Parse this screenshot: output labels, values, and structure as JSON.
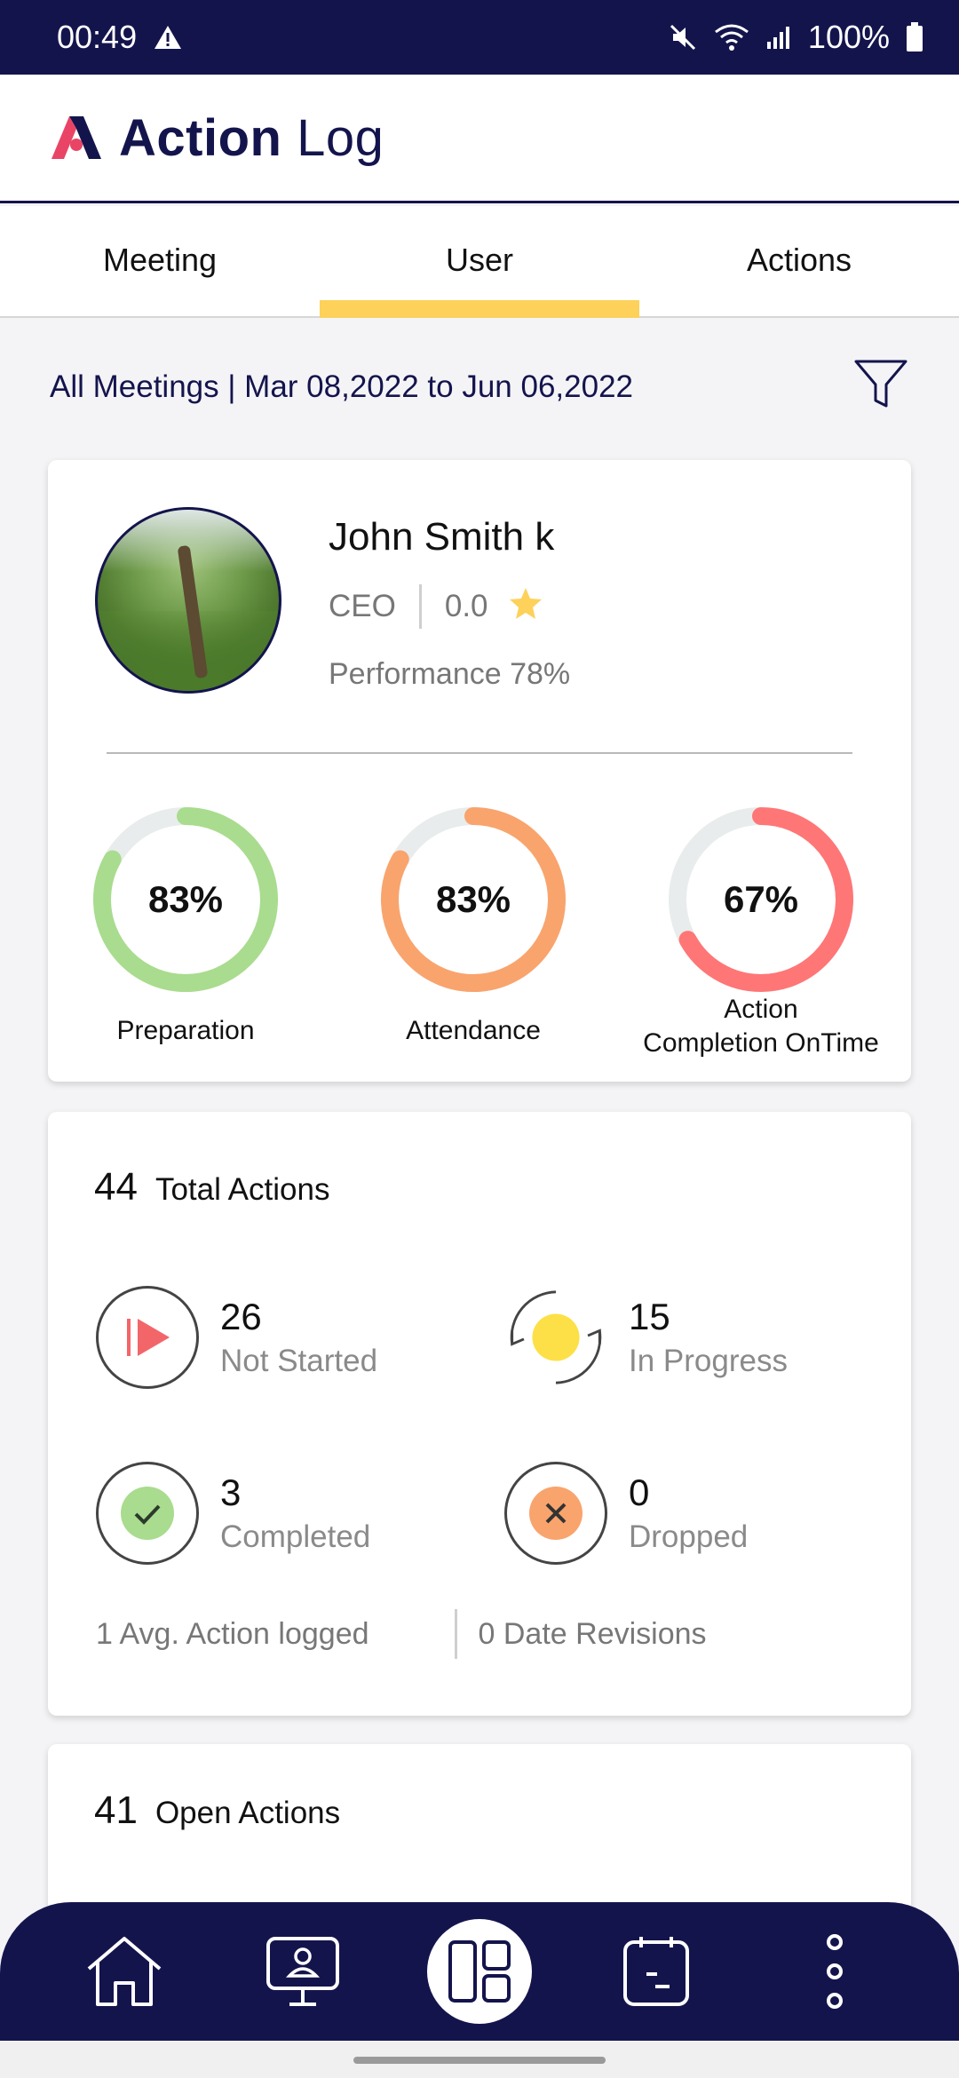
{
  "status": {
    "time": "00:49",
    "battery": "100%"
  },
  "app": {
    "title_bold": "Action",
    "title_light": "Log"
  },
  "tabs": [
    {
      "label": "Meeting",
      "active": false
    },
    {
      "label": "User",
      "active": true
    },
    {
      "label": "Actions",
      "active": false
    }
  ],
  "filter": {
    "range": "All Meetings | Mar 08,2022 to Jun 06,2022"
  },
  "profile": {
    "name": "John Smith k",
    "role": "CEO",
    "rating": "0.0",
    "performance": "Performance 78%"
  },
  "gauges": [
    {
      "value": "83%",
      "label": "Preparation",
      "fraction": 0.83,
      "color": "#a9dc8e"
    },
    {
      "value": "83%",
      "label": "Attendance",
      "fraction": 0.83,
      "color": "#f9a46d"
    },
    {
      "value": "67%",
      "label": "Action\nCompletion OnTime",
      "label_line1": "Action",
      "label_line2": "Completion OnTime",
      "fraction": 0.67,
      "color": "#ff7677"
    }
  ],
  "summary": {
    "total": "44",
    "total_label": "Total Actions",
    "stats": [
      {
        "num": "26",
        "name": "Not Started",
        "icon": "play-icon",
        "color": "#f26669"
      },
      {
        "num": "15",
        "name": "In Progress",
        "icon": "refresh-icon",
        "color": "#fde047"
      },
      {
        "num": "3",
        "name": "Completed",
        "icon": "check-icon",
        "color": "#a9dc8e"
      },
      {
        "num": "0",
        "name": "Dropped",
        "icon": "close-icon",
        "color": "#f9a46d"
      }
    ],
    "avg_logged": "1 Avg. Action logged",
    "date_revisions": "0 Date Revisions"
  },
  "open": {
    "count": "41",
    "label": "Open Actions"
  },
  "nav": [
    "home-icon",
    "meeting-icon",
    "dashboard-icon",
    "calendar-icon",
    "more-icon"
  ],
  "colors": {
    "navy": "#14144d",
    "accent_yellow": "#fdd15a",
    "brand_pink": "#e94466"
  }
}
